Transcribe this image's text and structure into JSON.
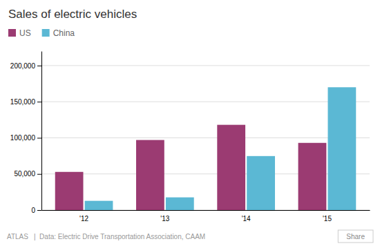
{
  "chart_data": {
    "type": "bar",
    "title": "Sales of electric vehicles",
    "categories": [
      "'12",
      "'13",
      "'14",
      "'15"
    ],
    "series": [
      {
        "name": "US",
        "color": "#9B3B72",
        "values": [
          52835,
          97000,
          118000,
          93000
        ]
      },
      {
        "name": "China",
        "color": "#5BB8D4",
        "values": [
          12791,
          17600,
          74763,
          170000
        ]
      }
    ],
    "ylim": [
      0,
      220000
    ],
    "yticks": [
      0,
      {
        "value": 50000,
        "label": "50,000"
      },
      {
        "value": 100000,
        "label": "100,000"
      },
      {
        "value": 150000,
        "label": "150,000"
      },
      {
        "value": 200000,
        "label": "200,000"
      }
    ],
    "grid": true,
    "legend": "upper left",
    "annotations": [
      "ATLAS",
      "|  Data: Electric Drive Transportation Association, CAAM",
      "Share"
    ]
  }
}
